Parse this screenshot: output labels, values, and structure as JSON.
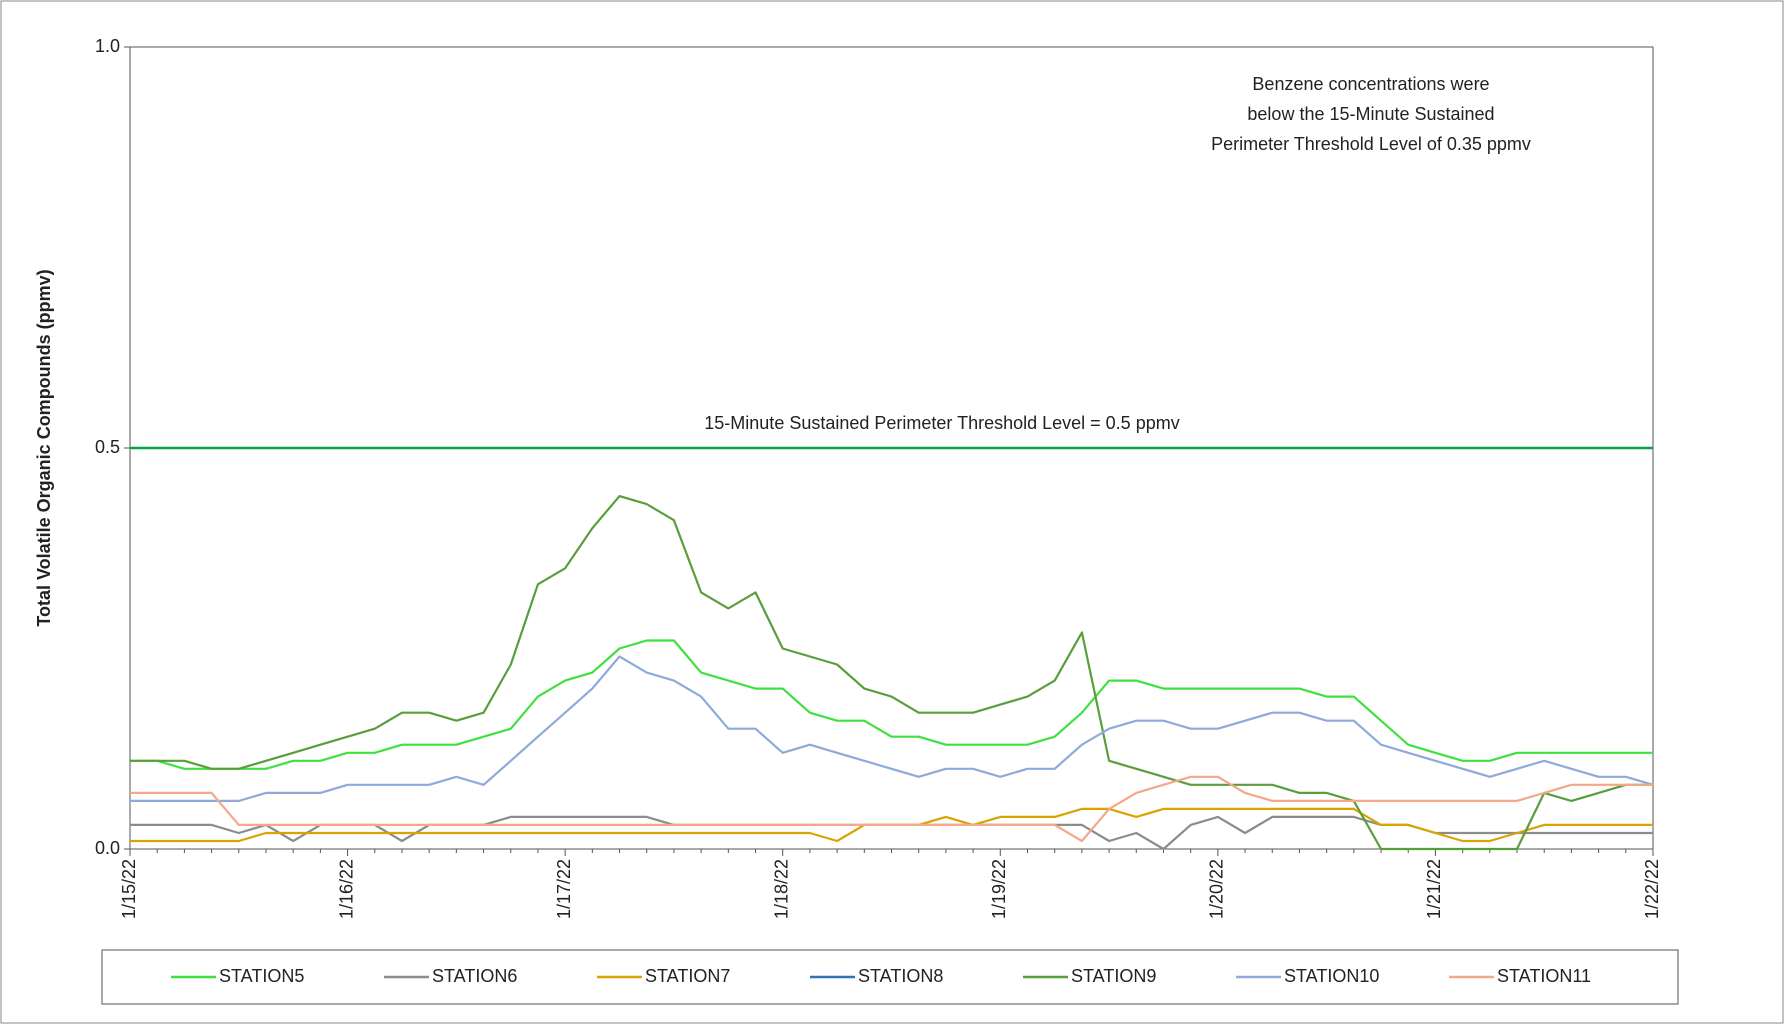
{
  "chart_data": {
    "type": "line",
    "y_label": "Total Volatile Organic Compounds (ppmv)",
    "annotation": [
      "Benzene concentrations were",
      "below the 15-Minute Sustained",
      "Perimeter Threshold Level of 0.35 ppmv"
    ],
    "threshold": {
      "value": 0.5,
      "label": "15-Minute Sustained Perimeter Threshold Level = 0.5 ppmv",
      "color": "#00a550"
    },
    "ylim": [
      0,
      1
    ],
    "yticks": [
      {
        "value": 0,
        "label": "0.0"
      },
      {
        "value": 0.5,
        "label": "0.5"
      },
      {
        "value": 1,
        "label": "1.0"
      }
    ],
    "categories": [
      "1/15/22",
      null,
      null,
      null,
      null,
      null,
      null,
      null,
      "1/16/22",
      null,
      null,
      null,
      null,
      null,
      null,
      null,
      "1/17/22",
      null,
      null,
      null,
      null,
      null,
      null,
      null,
      "1/18/22",
      null,
      null,
      null,
      null,
      null,
      null,
      null,
      "1/19/22",
      null,
      null,
      null,
      null,
      null,
      null,
      null,
      "1/20/22",
      null,
      null,
      null,
      null,
      null,
      null,
      null,
      "1/21/22",
      null,
      null,
      null,
      null,
      null,
      null,
      null,
      "1/22/22"
    ],
    "series": [
      {
        "name": "STATION5",
        "color": "#3fe03f",
        "values": [
          0.11,
          0.11,
          0.1,
          0.1,
          0.1,
          0.1,
          0.11,
          0.11,
          0.12,
          0.12,
          0.13,
          0.13,
          0.13,
          0.14,
          0.15,
          0.19,
          0.21,
          0.22,
          0.25,
          0.26,
          0.26,
          0.22,
          0.21,
          0.2,
          0.2,
          0.17,
          0.16,
          0.16,
          0.14,
          0.14,
          0.13,
          0.13,
          0.13,
          0.13,
          0.14,
          0.17,
          0.21,
          0.21,
          0.2,
          0.2,
          0.2,
          0.2,
          0.2,
          0.2,
          0.19,
          0.19,
          0.16,
          0.13,
          0.12,
          0.11,
          0.11,
          0.12,
          0.12,
          0.12,
          0.12,
          0.12,
          0.12
        ]
      },
      {
        "name": "STATION6",
        "color": "#8c8c8c",
        "values": [
          0.03,
          0.03,
          0.03,
          0.03,
          0.02,
          0.03,
          0.01,
          0.03,
          0.03,
          0.03,
          0.01,
          0.03,
          0.03,
          0.03,
          0.04,
          0.04,
          0.04,
          0.04,
          0.04,
          0.04,
          0.03,
          0.03,
          0.03,
          0.03,
          0.03,
          0.03,
          0.03,
          0.03,
          0.03,
          0.03,
          0.03,
          0.03,
          0.03,
          0.03,
          0.03,
          0.03,
          0.01,
          0.02,
          0.0,
          0.03,
          0.04,
          0.02,
          0.04,
          0.04,
          0.04,
          0.04,
          0.03,
          0.03,
          0.02,
          0.02,
          0.02,
          0.02,
          0.02,
          0.02,
          0.02,
          0.02,
          0.02
        ]
      },
      {
        "name": "STATION7",
        "color": "#d9a400",
        "values": [
          0.01,
          0.01,
          0.01,
          0.01,
          0.01,
          0.02,
          0.02,
          0.02,
          0.02,
          0.02,
          0.02,
          0.02,
          0.02,
          0.02,
          0.02,
          0.02,
          0.02,
          0.02,
          0.02,
          0.02,
          0.02,
          0.02,
          0.02,
          0.02,
          0.02,
          0.02,
          0.01,
          0.03,
          0.03,
          0.03,
          0.04,
          0.03,
          0.04,
          0.04,
          0.04,
          0.05,
          0.05,
          0.04,
          0.05,
          0.05,
          0.05,
          0.05,
          0.05,
          0.05,
          0.05,
          0.05,
          0.03,
          0.03,
          0.02,
          0.01,
          0.01,
          0.02,
          0.03,
          0.03,
          0.03,
          0.03,
          0.03
        ]
      },
      {
        "name": "STATION8",
        "color": "#2e75b6",
        "values": [
          null,
          null,
          null,
          null,
          null,
          null,
          null,
          null,
          null,
          null,
          null,
          null,
          null,
          null,
          null,
          null,
          null,
          null,
          null,
          null,
          null,
          null,
          null,
          null,
          null,
          null,
          null,
          null,
          null,
          null,
          null,
          null,
          null,
          null,
          null,
          null,
          null,
          null,
          null,
          null,
          null,
          null,
          null,
          null,
          null,
          null,
          null,
          null,
          null,
          null,
          null,
          null,
          null,
          null,
          null,
          null,
          null
        ]
      },
      {
        "name": "STATION9",
        "color": "#5a9e3c",
        "values": [
          0.11,
          0.11,
          0.11,
          0.1,
          0.1,
          0.11,
          0.12,
          0.13,
          0.14,
          0.15,
          0.17,
          0.17,
          0.16,
          0.17,
          0.23,
          0.33,
          0.35,
          0.4,
          0.44,
          0.43,
          0.41,
          0.32,
          0.3,
          0.32,
          0.25,
          0.24,
          0.23,
          0.2,
          0.19,
          0.17,
          0.17,
          0.17,
          0.18,
          0.19,
          0.21,
          0.27,
          0.11,
          0.1,
          0.09,
          0.08,
          0.08,
          0.08,
          0.08,
          0.07,
          0.07,
          0.06,
          0.0,
          0.0,
          0.0,
          0.0,
          0.0,
          0.0,
          0.07,
          0.06,
          0.07,
          0.08,
          0.08
        ]
      },
      {
        "name": "STATION10",
        "color": "#8ea9db",
        "values": [
          0.06,
          0.06,
          0.06,
          0.06,
          0.06,
          0.07,
          0.07,
          0.07,
          0.08,
          0.08,
          0.08,
          0.08,
          0.09,
          0.08,
          0.11,
          0.14,
          0.17,
          0.2,
          0.24,
          0.22,
          0.21,
          0.19,
          0.15,
          0.15,
          0.12,
          0.13,
          0.12,
          0.11,
          0.1,
          0.09,
          0.1,
          0.1,
          0.09,
          0.1,
          0.1,
          0.13,
          0.15,
          0.16,
          0.16,
          0.15,
          0.15,
          0.16,
          0.17,
          0.17,
          0.16,
          0.16,
          0.13,
          0.12,
          0.11,
          0.1,
          0.09,
          0.1,
          0.11,
          0.1,
          0.09,
          0.09,
          0.08
        ]
      },
      {
        "name": "STATION11",
        "color": "#f4a78a",
        "values": [
          0.07,
          0.07,
          0.07,
          0.07,
          0.03,
          0.03,
          0.03,
          0.03,
          0.03,
          0.03,
          0.03,
          0.03,
          0.03,
          0.03,
          0.03,
          0.03,
          0.03,
          0.03,
          0.03,
          0.03,
          0.03,
          0.03,
          0.03,
          0.03,
          0.03,
          0.03,
          0.03,
          0.03,
          0.03,
          0.03,
          0.03,
          0.03,
          0.03,
          0.03,
          0.03,
          0.01,
          0.05,
          0.07,
          0.08,
          0.09,
          0.09,
          0.07,
          0.06,
          0.06,
          0.06,
          0.06,
          0.06,
          0.06,
          0.06,
          0.06,
          0.06,
          0.06,
          0.07,
          0.08,
          0.08,
          0.08,
          0.08
        ]
      }
    ]
  }
}
